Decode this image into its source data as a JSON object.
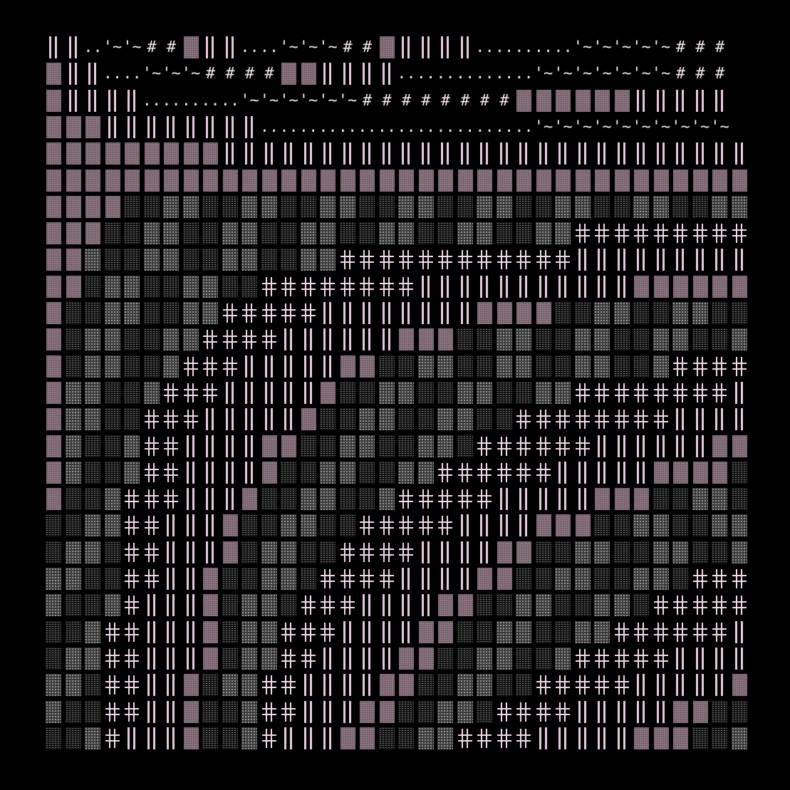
{
  "art": {
    "description_legend": {
      "F": "filled-block",
      "M": "medium-shade",
      "L": "light-shade",
      "B": "double-bar",
      "C": "double-cross",
      "D": "dots",
      "T": "tilde-pattern",
      "H": "hash",
      "S": "space"
    },
    "rows": [
      "BBDTTHHFBBDDTTTHHFBBBBDDDDDTTTTTHHH",
      "FBBDDTTTHHHHFFBBBBDDDDDDDTTTTTTTHHH",
      "FBBBBDDDDDTTTTTTHHHHHHHHFFFFFFBBBBB",
      "FFFBBBBBBBBDDDDDDDDDDDDDDTTTTTTTTTT",
      "FFFFFFFFFBBBBBBBBBBBBBBBBBBBBBBBBBBB",
      "FFFFFFFFFFFFFFFFFFFFFFFFFFFFFFFFFFFF",
      "FFFFLLMMLLMMLLMMLLMMLLMMLLMMLLMMLLMM",
      "FFFLLMMLLMMLLMMLLMMLLMMLLMMCCCCCCCCC",
      "FFMLLMMLLMMLLMMCCCCCCCCCCCCBBBBBBBBB",
      "FFLMMLLMMLLCCCCCCCCBBBBBBBBBBBFFFFFF",
      "FLLMMLLMMCCCCCBBBBBBBBFFFFLLMMLLMMLL",
      "FLMMLLMMCCCCBBBBBBFFFLLMMLLMMLLMMLLM",
      "FLMMLLMCCCBBBBBFFLLMMLLMMLLMMLLMCCCC",
      "FMMLLMCCCBBBBBFLLMMLLMMLLMMCCCCCCCCB",
      "FMMLLCCCBBBBBFLLMMLLMMLLCCCCCCCCBBBB",
      "FMLLMCCBBBBFFLLMMLLMMLCCCCCCBBBBBBFF",
      "FMLLMCCBBBBFLLMMLLMMCCCCCCBBBBBFFFFL",
      "FLLMCCCBBBFLLMMLLMCCCCCBBBBBFFFLLMMLL",
      "LLMMCCBBBFLLMMLLCCCCCBBBBFFFLLMMLLMM",
      "LMMLCCBBBFLMMLLCCCCBBBBFFLLMMLLMMLLM",
      "MMLLCCBBFLLMMLCCCCBBBBFFLLMMLLMMLCCC",
      "MLLMCBBBFLMMLCCCBBBBFFLLMMLLMMLCCCCC",
      "LLMCCBBBFLMMCCCBBBBFFLLMMLLMMCCCCCCB",
      "LMMCCBBBFLMMCCBBBBFFLLMMLLMCCCCCBBBB",
      "MMLCCBBFLMMCCBBBBFFLLMMLLCCCCCBBBBBF",
      "MLLCCBBFLLMCCBBBFFLLMMLCCCCBBBBBFFLL",
      "LLMCBBBFLLMCBBBFFLLMMCCCCBBBBBFFFLLM"
    ]
  }
}
